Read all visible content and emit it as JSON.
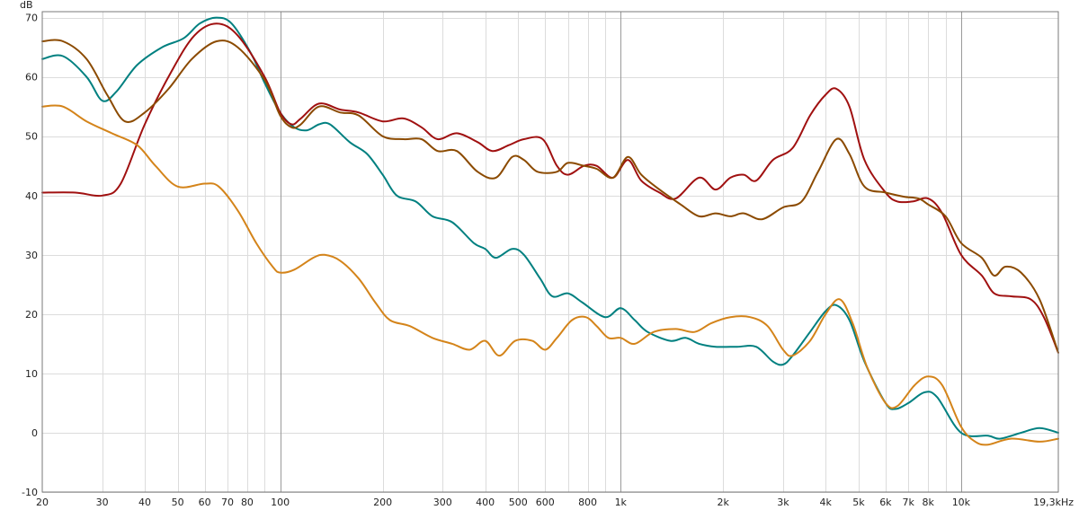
{
  "chart_data": {
    "type": "line",
    "title": "",
    "xlabel": "",
    "ylabel": "dB",
    "x_scale": "log",
    "xlim": [
      20,
      19300
    ],
    "ylim": [
      -10,
      71
    ],
    "grid": true,
    "legend": "none",
    "x_ticks": [
      {
        "value": 20,
        "label": "20"
      },
      {
        "value": 30,
        "label": "30"
      },
      {
        "value": 40,
        "label": "40"
      },
      {
        "value": 50,
        "label": "50"
      },
      {
        "value": 60,
        "label": "60"
      },
      {
        "value": 70,
        "label": "70"
      },
      {
        "value": 80,
        "label": "80"
      },
      {
        "value": 100,
        "label": "100"
      },
      {
        "value": 200,
        "label": "200"
      },
      {
        "value": 300,
        "label": "300"
      },
      {
        "value": 400,
        "label": "400"
      },
      {
        "value": 500,
        "label": "500"
      },
      {
        "value": 600,
        "label": "600"
      },
      {
        "value": 800,
        "label": "800"
      },
      {
        "value": 1000,
        "label": "1k"
      },
      {
        "value": 2000,
        "label": "2k"
      },
      {
        "value": 3000,
        "label": "3k"
      },
      {
        "value": 4000,
        "label": "4k"
      },
      {
        "value": 5000,
        "label": "5k"
      },
      {
        "value": 6000,
        "label": "6k"
      },
      {
        "value": 7000,
        "label": "7k"
      },
      {
        "value": 8000,
        "label": "8k"
      },
      {
        "value": 10000,
        "label": "10k"
      },
      {
        "value": 19300,
        "label": "19,3kHz"
      }
    ],
    "y_ticks": [
      70,
      60,
      50,
      40,
      30,
      20,
      10,
      0,
      -10
    ],
    "series": [
      {
        "color": "#008080",
        "points": [
          [
            20,
            63
          ],
          [
            23,
            63.5
          ],
          [
            27,
            60
          ],
          [
            30,
            56
          ],
          [
            33,
            57.5
          ],
          [
            38,
            62
          ],
          [
            45,
            65
          ],
          [
            52,
            66.5
          ],
          [
            58,
            69
          ],
          [
            65,
            70
          ],
          [
            72,
            69
          ],
          [
            82,
            64
          ],
          [
            90,
            59
          ],
          [
            100,
            54
          ],
          [
            110,
            51.5
          ],
          [
            120,
            51
          ],
          [
            130,
            52
          ],
          [
            140,
            52
          ],
          [
            160,
            49
          ],
          [
            180,
            47
          ],
          [
            200,
            43.5
          ],
          [
            220,
            40
          ],
          [
            250,
            39
          ],
          [
            280,
            36.5
          ],
          [
            320,
            35.5
          ],
          [
            370,
            32
          ],
          [
            400,
            31
          ],
          [
            430,
            29.5
          ],
          [
            480,
            31
          ],
          [
            520,
            30
          ],
          [
            580,
            26
          ],
          [
            630,
            23
          ],
          [
            700,
            23.5
          ],
          [
            770,
            22
          ],
          [
            900,
            19.5
          ],
          [
            1000,
            21
          ],
          [
            1100,
            19
          ],
          [
            1200,
            17
          ],
          [
            1400,
            15.5
          ],
          [
            1550,
            16
          ],
          [
            1700,
            15
          ],
          [
            1900,
            14.5
          ],
          [
            2200,
            14.5
          ],
          [
            2500,
            14.5
          ],
          [
            2800,
            12
          ],
          [
            3000,
            11.5
          ],
          [
            3200,
            13
          ],
          [
            3600,
            17
          ],
          [
            4000,
            20.5
          ],
          [
            4300,
            21.5
          ],
          [
            4700,
            19
          ],
          [
            5200,
            12
          ],
          [
            6000,
            5
          ],
          [
            6400,
            4
          ],
          [
            7000,
            5
          ],
          [
            7800,
            6.8
          ],
          [
            8500,
            6
          ],
          [
            10000,
            0
          ],
          [
            12000,
            -0.5
          ],
          [
            13000,
            -1
          ],
          [
            15000,
            0
          ],
          [
            17000,
            0.8
          ],
          [
            19300,
            0
          ]
        ]
      },
      {
        "color": "#a01010",
        "points": [
          [
            20,
            40.5
          ],
          [
            25,
            40.5
          ],
          [
            30,
            40
          ],
          [
            34,
            42
          ],
          [
            40,
            52
          ],
          [
            48,
            61
          ],
          [
            56,
            67
          ],
          [
            65,
            69
          ],
          [
            75,
            67
          ],
          [
            90,
            60
          ],
          [
            100,
            54
          ],
          [
            108,
            52
          ],
          [
            115,
            53
          ],
          [
            130,
            55.5
          ],
          [
            150,
            54.5
          ],
          [
            170,
            54
          ],
          [
            200,
            52.5
          ],
          [
            230,
            53
          ],
          [
            260,
            51.5
          ],
          [
            290,
            49.5
          ],
          [
            330,
            50.5
          ],
          [
            380,
            49
          ],
          [
            420,
            47.5
          ],
          [
            470,
            48.5
          ],
          [
            520,
            49.5
          ],
          [
            590,
            49.5
          ],
          [
            650,
            45
          ],
          [
            700,
            43.5
          ],
          [
            780,
            45
          ],
          [
            850,
            45
          ],
          [
            950,
            43
          ],
          [
            1050,
            46
          ],
          [
            1150,
            42.5
          ],
          [
            1300,
            40.5
          ],
          [
            1450,
            39.5
          ],
          [
            1700,
            43
          ],
          [
            1900,
            41
          ],
          [
            2100,
            43
          ],
          [
            2300,
            43.5
          ],
          [
            2500,
            42.5
          ],
          [
            2800,
            46
          ],
          [
            3200,
            48
          ],
          [
            3600,
            53.5
          ],
          [
            4000,
            57
          ],
          [
            4300,
            58
          ],
          [
            4700,
            55
          ],
          [
            5200,
            46
          ],
          [
            6000,
            40.5
          ],
          [
            6500,
            39
          ],
          [
            7200,
            39
          ],
          [
            8000,
            39.5
          ],
          [
            8800,
            37
          ],
          [
            10000,
            30
          ],
          [
            11500,
            26.5
          ],
          [
            12500,
            23.5
          ],
          [
            14000,
            23
          ],
          [
            16000,
            22.5
          ],
          [
            17500,
            19.5
          ],
          [
            19300,
            13.5
          ]
        ]
      },
      {
        "color": "#8b4a00",
        "points": [
          [
            20,
            66
          ],
          [
            23,
            66
          ],
          [
            27,
            63
          ],
          [
            31,
            57
          ],
          [
            35,
            52.5
          ],
          [
            40,
            54
          ],
          [
            47,
            58
          ],
          [
            55,
            63
          ],
          [
            65,
            66
          ],
          [
            75,
            65
          ],
          [
            90,
            59.5
          ],
          [
            100,
            53.5
          ],
          [
            108,
            51.5
          ],
          [
            115,
            52
          ],
          [
            130,
            55
          ],
          [
            150,
            54
          ],
          [
            170,
            53.5
          ],
          [
            200,
            50
          ],
          [
            230,
            49.5
          ],
          [
            260,
            49.5
          ],
          [
            290,
            47.5
          ],
          [
            330,
            47.5
          ],
          [
            380,
            44
          ],
          [
            430,
            43
          ],
          [
            480,
            46.5
          ],
          [
            520,
            46
          ],
          [
            570,
            44
          ],
          [
            650,
            44
          ],
          [
            700,
            45.5
          ],
          [
            780,
            45
          ],
          [
            850,
            44.5
          ],
          [
            950,
            43
          ],
          [
            1050,
            46.5
          ],
          [
            1150,
            43.5
          ],
          [
            1300,
            41
          ],
          [
            1500,
            38.5
          ],
          [
            1700,
            36.5
          ],
          [
            1900,
            37
          ],
          [
            2100,
            36.5
          ],
          [
            2300,
            37
          ],
          [
            2600,
            36
          ],
          [
            3000,
            38
          ],
          [
            3400,
            39
          ],
          [
            3800,
            44
          ],
          [
            4300,
            49.5
          ],
          [
            4700,
            47
          ],
          [
            5200,
            41.5
          ],
          [
            6000,
            40.5
          ],
          [
            6800,
            39.8
          ],
          [
            7500,
            39.5
          ],
          [
            8000,
            38.5
          ],
          [
            9000,
            36.5
          ],
          [
            10000,
            32
          ],
          [
            11500,
            29.5
          ],
          [
            12500,
            26.5
          ],
          [
            13500,
            28
          ],
          [
            15000,
            27
          ],
          [
            17000,
            22.5
          ],
          [
            19300,
            13.5
          ]
        ]
      },
      {
        "color": "#d4841a",
        "points": [
          [
            20,
            55
          ],
          [
            23,
            55
          ],
          [
            27,
            52.5
          ],
          [
            32,
            50.5
          ],
          [
            38,
            48.5
          ],
          [
            43,
            45
          ],
          [
            50,
            41.5
          ],
          [
            60,
            42
          ],
          [
            66,
            41.5
          ],
          [
            75,
            37.5
          ],
          [
            85,
            32
          ],
          [
            95,
            28
          ],
          [
            100,
            27
          ],
          [
            110,
            27.5
          ],
          [
            125,
            29.5
          ],
          [
            135,
            30
          ],
          [
            150,
            29
          ],
          [
            170,
            26
          ],
          [
            190,
            22
          ],
          [
            210,
            19
          ],
          [
            240,
            18
          ],
          [
            280,
            16
          ],
          [
            320,
            15
          ],
          [
            360,
            14
          ],
          [
            400,
            15.5
          ],
          [
            440,
            13
          ],
          [
            490,
            15.5
          ],
          [
            550,
            15.5
          ],
          [
            600,
            14
          ],
          [
            650,
            16
          ],
          [
            720,
            19
          ],
          [
            790,
            19.5
          ],
          [
            850,
            18
          ],
          [
            920,
            16
          ],
          [
            1000,
            16
          ],
          [
            1100,
            15
          ],
          [
            1250,
            17
          ],
          [
            1450,
            17.5
          ],
          [
            1650,
            17
          ],
          [
            1850,
            18.5
          ],
          [
            2100,
            19.5
          ],
          [
            2400,
            19.5
          ],
          [
            2700,
            18
          ],
          [
            3000,
            14
          ],
          [
            3200,
            13
          ],
          [
            3600,
            15.5
          ],
          [
            4000,
            20
          ],
          [
            4400,
            22.5
          ],
          [
            4800,
            18.5
          ],
          [
            5300,
            11
          ],
          [
            6000,
            5
          ],
          [
            6500,
            4.5
          ],
          [
            7300,
            8
          ],
          [
            8000,
            9.5
          ],
          [
            8800,
            8
          ],
          [
            10000,
            1
          ],
          [
            11000,
            -1.5
          ],
          [
            12000,
            -2
          ],
          [
            14000,
            -1
          ],
          [
            17000,
            -1.5
          ],
          [
            19300,
            -1
          ]
        ]
      }
    ]
  }
}
